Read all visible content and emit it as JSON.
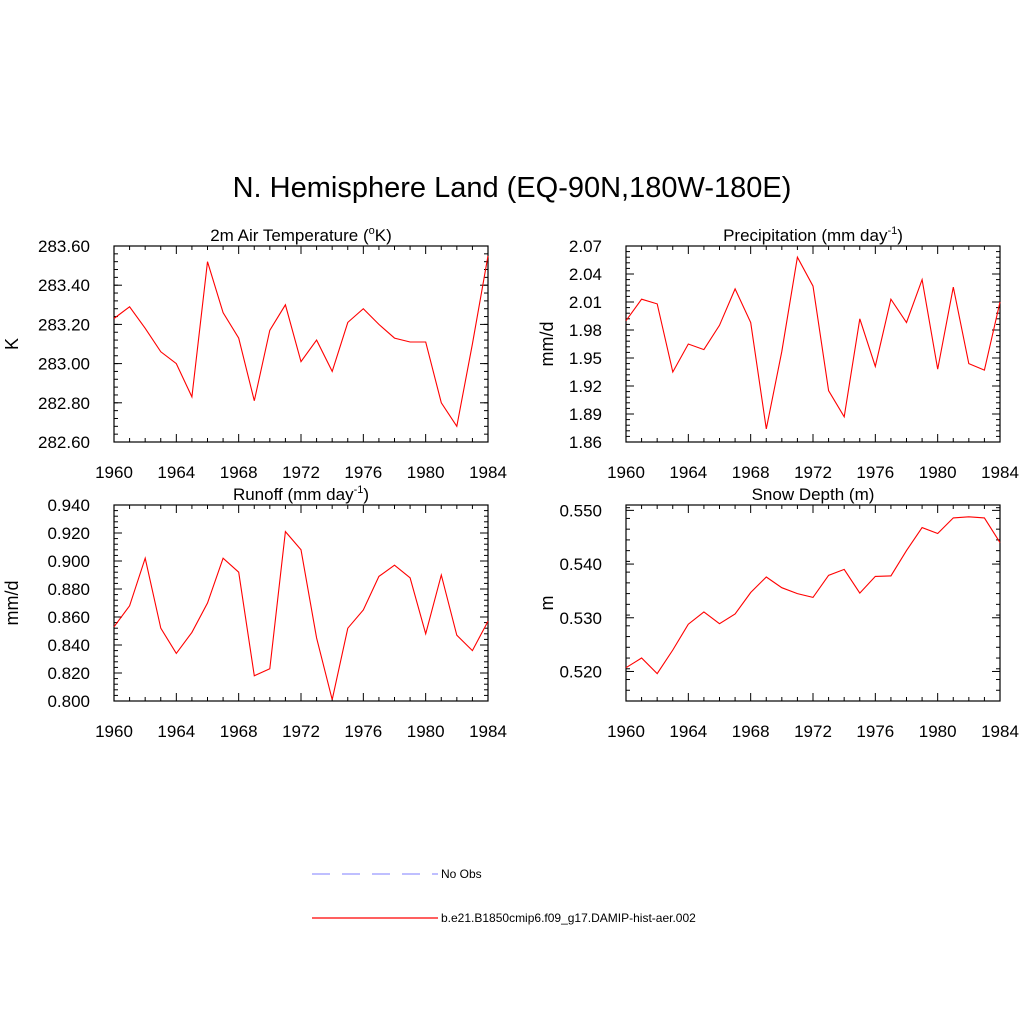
{
  "title": "N. Hemisphere Land (EQ-90N,180W-180E)",
  "colors": {
    "model": "#ff0000",
    "obs": "#9999ff",
    "axis": "#000000"
  },
  "legend": {
    "obs_label": "No Obs",
    "model_label": "b.e21.B1850cmip6.f09_g17.DAMIP-hist-aer.002"
  },
  "chart_data": [
    {
      "type": "line",
      "title": "2m Air Temperature (oK)",
      "title_base": "2m Air Temperature (",
      "title_sup": "o",
      "title_tail": "K)",
      "ylabel": "K",
      "xlim": [
        1960,
        1984
      ],
      "ylim": [
        282.6,
        283.6
      ],
      "xticks": [
        1960,
        1964,
        1968,
        1972,
        1976,
        1980,
        1984
      ],
      "yticks": [
        "282.60",
        "282.80",
        "283.00",
        "283.20",
        "283.40",
        "283.60"
      ],
      "x": [
        1960,
        1961,
        1962,
        1963,
        1964,
        1965,
        1966,
        1967,
        1968,
        1969,
        1970,
        1971,
        1972,
        1973,
        1974,
        1975,
        1976,
        1977,
        1978,
        1979,
        1980,
        1981,
        1982,
        1983,
        1984
      ],
      "series": [
        {
          "values": [
            283.23,
            283.29,
            283.18,
            283.06,
            283.0,
            282.83,
            283.52,
            283.26,
            283.13,
            282.81,
            283.17,
            283.3,
            283.01,
            283.12,
            282.96,
            283.21,
            283.28,
            283.2,
            283.13,
            283.11,
            283.11,
            282.8,
            282.68,
            283.1,
            283.55
          ]
        }
      ]
    },
    {
      "type": "line",
      "title": "Precipitation (mm day-1)",
      "title_base": "Precipitation (mm day",
      "title_sup": "-1",
      "title_tail": ")",
      "ylabel": "mm/d",
      "xlim": [
        1960,
        1984
      ],
      "ylim": [
        1.86,
        2.07
      ],
      "xticks": [
        1960,
        1964,
        1968,
        1972,
        1976,
        1980,
        1984
      ],
      "yticks": [
        "1.86",
        "1.89",
        "1.92",
        "1.95",
        "1.98",
        "2.01",
        "2.04",
        "2.07"
      ],
      "x": [
        1960,
        1961,
        1962,
        1963,
        1964,
        1965,
        1966,
        1967,
        1968,
        1969,
        1970,
        1971,
        1972,
        1973,
        1974,
        1975,
        1976,
        1977,
        1978,
        1979,
        1980,
        1981,
        1982,
        1983,
        1984
      ],
      "series": [
        {
          "values": [
            1.99,
            2.013,
            2.008,
            1.935,
            1.965,
            1.959,
            1.985,
            2.024,
            1.988,
            1.874,
            1.957,
            2.058,
            2.027,
            1.915,
            1.887,
            1.992,
            1.941,
            2.013,
            1.988,
            2.034,
            1.938,
            2.026,
            1.944,
            1.937,
            2.01
          ]
        }
      ]
    },
    {
      "type": "line",
      "title": "Runoff (mm day-1)",
      "title_base": "Runoff (mm day",
      "title_sup": "-1",
      "title_tail": ")",
      "ylabel": "mm/d",
      "xlim": [
        1960,
        1984
      ],
      "ylim": [
        0.8,
        0.94
      ],
      "xticks": [
        1960,
        1964,
        1968,
        1972,
        1976,
        1980,
        1984
      ],
      "yticks": [
        "0.800",
        "0.820",
        "0.840",
        "0.860",
        "0.880",
        "0.900",
        "0.920",
        "0.940"
      ],
      "x": [
        1960,
        1961,
        1962,
        1963,
        1964,
        1965,
        1966,
        1967,
        1968,
        1969,
        1970,
        1971,
        1972,
        1973,
        1974,
        1975,
        1976,
        1977,
        1978,
        1979,
        1980,
        1981,
        1982,
        1983,
        1984
      ],
      "series": [
        {
          "values": [
            0.853,
            0.868,
            0.902,
            0.852,
            0.834,
            0.849,
            0.87,
            0.902,
            0.892,
            0.818,
            0.823,
            0.921,
            0.908,
            0.845,
            0.801,
            0.852,
            0.865,
            0.889,
            0.897,
            0.888,
            0.848,
            0.89,
            0.847,
            0.836,
            0.857
          ]
        }
      ]
    },
    {
      "type": "line",
      "title": "Snow Depth (m)",
      "title_base": "Snow Depth (m)",
      "title_sup": "",
      "title_tail": "",
      "ylabel": "m",
      "xlim": [
        1960,
        1984
      ],
      "ylim": [
        0.5145,
        0.551
      ],
      "xticks": [
        1960,
        1964,
        1968,
        1972,
        1976,
        1980,
        1984
      ],
      "yticks": [
        "0.520",
        "0.530",
        "0.540",
        "0.550"
      ],
      "ytick_values": [
        0.52,
        0.53,
        0.54,
        0.55
      ],
      "x": [
        1960,
        1961,
        1962,
        1963,
        1964,
        1965,
        1966,
        1967,
        1968,
        1969,
        1970,
        1971,
        1972,
        1973,
        1974,
        1975,
        1976,
        1977,
        1978,
        1979,
        1980,
        1981,
        1982,
        1983,
        1984
      ],
      "series": [
        {
          "values": [
            0.5207,
            0.5225,
            0.5196,
            0.524,
            0.5288,
            0.5311,
            0.5289,
            0.5307,
            0.5347,
            0.5376,
            0.5356,
            0.5345,
            0.5338,
            0.5379,
            0.539,
            0.5346,
            0.5377,
            0.5378,
            0.5425,
            0.5468,
            0.5457,
            0.5486,
            0.5488,
            0.5486,
            0.544
          ]
        }
      ]
    }
  ]
}
